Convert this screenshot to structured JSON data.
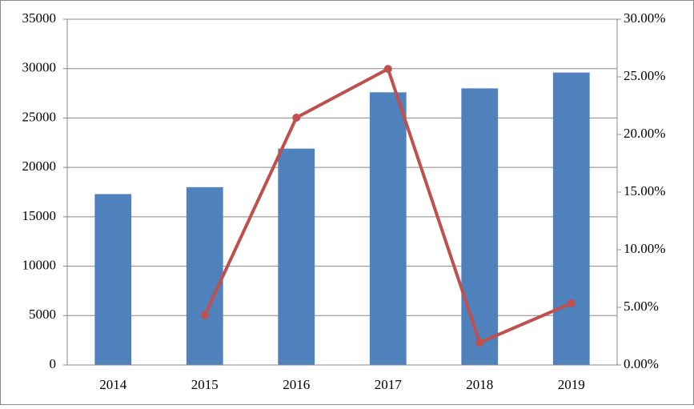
{
  "chart_data": {
    "type": "bar-line",
    "categories": [
      "2014",
      "2015",
      "2016",
      "2017",
      "2018",
      "2019"
    ],
    "series": [
      {
        "type": "bar",
        "color": "#4f81bd",
        "values": [
          17300,
          18000,
          21900,
          27600,
          28000,
          29600
        ]
      },
      {
        "type": "line",
        "axis": "y2",
        "color": "#c0504d",
        "values": [
          null,
          4.31,
          21.46,
          25.69,
          1.94,
          5.35
        ]
      }
    ],
    "ylim": [
      0,
      35000
    ],
    "yticks": [
      0,
      5000,
      10000,
      15000,
      20000,
      25000,
      30000,
      35000
    ],
    "y2lim": [
      0,
      30
    ],
    "y2ticks": [
      {
        "value": 0,
        "label": "0.00%"
      },
      {
        "value": 5,
        "label": "5.00%"
      },
      {
        "value": 10,
        "label": "10.00%"
      },
      {
        "value": 15,
        "label": "15.00%"
      },
      {
        "value": 20,
        "label": "20.00%"
      },
      {
        "value": 25,
        "label": "25.00%"
      },
      {
        "value": 30,
        "label": "30.00%"
      }
    ],
    "grid": true
  }
}
